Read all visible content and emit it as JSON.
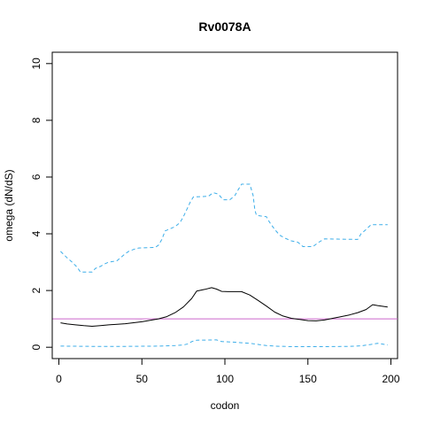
{
  "chart_data": {
    "type": "line",
    "title": "Rv0078A",
    "xlabel": "codon",
    "ylabel": "omega (dN/dS)",
    "xlim": [
      -4,
      204
    ],
    "ylim": [
      -0.4,
      10.4
    ],
    "x_ticks": [
      0,
      50,
      100,
      150,
      200
    ],
    "y_ticks": [
      0,
      2,
      4,
      6,
      8,
      10
    ],
    "grid": false,
    "reference_line": {
      "y": 1,
      "color": "#cc66cc"
    },
    "series": [
      {
        "style": "solid",
        "color": "#000000",
        "points": [
          [
            1,
            0.86
          ],
          [
            5,
            0.82
          ],
          [
            10,
            0.79
          ],
          [
            15,
            0.76
          ],
          [
            20,
            0.74
          ],
          [
            25,
            0.76
          ],
          [
            30,
            0.79
          ],
          [
            40,
            0.83
          ],
          [
            50,
            0.9
          ],
          [
            55,
            0.95
          ],
          [
            60,
            1.0
          ],
          [
            65,
            1.08
          ],
          [
            70,
            1.22
          ],
          [
            75,
            1.42
          ],
          [
            80,
            1.72
          ],
          [
            83,
            1.98
          ],
          [
            88,
            2.04
          ],
          [
            92,
            2.1
          ],
          [
            95,
            2.05
          ],
          [
            98,
            1.97
          ],
          [
            102,
            1.96
          ],
          [
            110,
            1.96
          ],
          [
            115,
            1.84
          ],
          [
            120,
            1.65
          ],
          [
            125,
            1.45
          ],
          [
            130,
            1.24
          ],
          [
            135,
            1.1
          ],
          [
            140,
            1.02
          ],
          [
            145,
            0.98
          ],
          [
            150,
            0.94
          ],
          [
            155,
            0.93
          ],
          [
            160,
            0.96
          ],
          [
            165,
            1.02
          ],
          [
            170,
            1.08
          ],
          [
            175,
            1.14
          ],
          [
            180,
            1.22
          ],
          [
            185,
            1.33
          ],
          [
            189,
            1.5
          ],
          [
            192,
            1.47
          ],
          [
            198,
            1.42
          ]
        ]
      },
      {
        "style": "dashed",
        "color": "#3daee9",
        "points": [
          [
            1,
            3.38
          ],
          [
            5,
            3.15
          ],
          [
            8,
            3.0
          ],
          [
            11,
            2.82
          ],
          [
            13,
            2.65
          ],
          [
            20,
            2.65
          ],
          [
            22,
            2.78
          ],
          [
            25,
            2.85
          ],
          [
            28,
            2.95
          ],
          [
            30,
            3.0
          ],
          [
            35,
            3.05
          ],
          [
            37,
            3.15
          ],
          [
            40,
            3.3
          ],
          [
            42,
            3.38
          ],
          [
            45,
            3.45
          ],
          [
            48,
            3.5
          ],
          [
            58,
            3.52
          ],
          [
            60,
            3.6
          ],
          [
            62,
            3.8
          ],
          [
            64,
            4.1
          ],
          [
            68,
            4.2
          ],
          [
            70,
            4.25
          ],
          [
            73,
            4.4
          ],
          [
            75,
            4.6
          ],
          [
            77,
            4.85
          ],
          [
            79,
            5.1
          ],
          [
            81,
            5.3
          ],
          [
            90,
            5.32
          ],
          [
            93,
            5.45
          ],
          [
            96,
            5.4
          ],
          [
            99,
            5.2
          ],
          [
            103,
            5.2
          ],
          [
            106,
            5.35
          ],
          [
            108,
            5.55
          ],
          [
            110,
            5.75
          ],
          [
            115,
            5.75
          ],
          [
            117,
            5.35
          ],
          [
            118,
            4.85
          ],
          [
            119,
            4.65
          ],
          [
            125,
            4.6
          ],
          [
            127,
            4.4
          ],
          [
            130,
            4.15
          ],
          [
            133,
            3.95
          ],
          [
            136,
            3.85
          ],
          [
            140,
            3.75
          ],
          [
            144,
            3.7
          ],
          [
            147,
            3.55
          ],
          [
            153,
            3.55
          ],
          [
            157,
            3.72
          ],
          [
            160,
            3.82
          ],
          [
            180,
            3.8
          ],
          [
            182,
            4.0
          ],
          [
            185,
            4.15
          ],
          [
            188,
            4.32
          ],
          [
            198,
            4.32
          ]
        ]
      },
      {
        "style": "dashed",
        "color": "#3daee9",
        "points": [
          [
            1,
            0.04
          ],
          [
            20,
            0.03
          ],
          [
            40,
            0.03
          ],
          [
            60,
            0.04
          ],
          [
            70,
            0.06
          ],
          [
            75,
            0.08
          ],
          [
            78,
            0.12
          ],
          [
            80,
            0.2
          ],
          [
            83,
            0.25
          ],
          [
            95,
            0.26
          ],
          [
            98,
            0.2
          ],
          [
            105,
            0.18
          ],
          [
            110,
            0.16
          ],
          [
            115,
            0.14
          ],
          [
            120,
            0.1
          ],
          [
            125,
            0.06
          ],
          [
            130,
            0.04
          ],
          [
            140,
            0.02
          ],
          [
            160,
            0.02
          ],
          [
            175,
            0.03
          ],
          [
            182,
            0.05
          ],
          [
            188,
            0.1
          ],
          [
            192,
            0.14
          ],
          [
            198,
            0.08
          ]
        ]
      }
    ]
  }
}
